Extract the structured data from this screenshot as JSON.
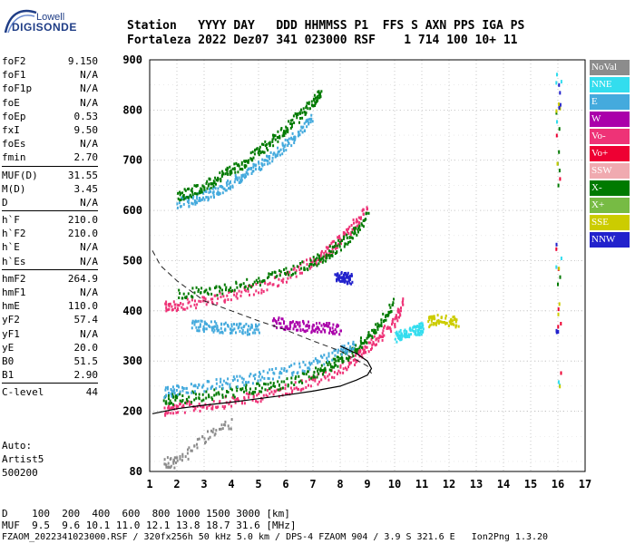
{
  "logo": {
    "line1": "Lowell",
    "line2": "DIGISONDE"
  },
  "header": {
    "line1": "Station   YYYY DAY   DDD HHMMSS P1  FFS S AXN PPS IGA PS",
    "line2": "Fortaleza 2022 Dez07 341 023000 RSF    1 714 100 10+ 11"
  },
  "params_groups": [
    [
      {
        "k": "foF2",
        "v": "9.150"
      },
      {
        "k": "foF1",
        "v": "N/A"
      },
      {
        "k": "foF1p",
        "v": "N/A"
      },
      {
        "k": "foE",
        "v": "N/A"
      },
      {
        "k": "foEp",
        "v": "0.53"
      },
      {
        "k": "fxI",
        "v": "9.50"
      },
      {
        "k": "foEs",
        "v": "N/A"
      },
      {
        "k": "fmin",
        "v": "2.70"
      }
    ],
    [
      {
        "k": "MUF(D)",
        "v": "31.55"
      },
      {
        "k": "M(D)",
        "v": "3.45"
      },
      {
        "k": "D",
        "v": "N/A"
      }
    ],
    [
      {
        "k": "h`F",
        "v": "210.0"
      },
      {
        "k": "h`F2",
        "v": "210.0"
      },
      {
        "k": "h`E",
        "v": "N/A"
      },
      {
        "k": "h`Es",
        "v": "N/A"
      }
    ],
    [
      {
        "k": "hmF2",
        "v": "264.9"
      },
      {
        "k": "hmF1",
        "v": "N/A"
      },
      {
        "k": "hmE",
        "v": "110.0"
      },
      {
        "k": "yF2",
        "v": "57.4"
      },
      {
        "k": "yF1",
        "v": "N/A"
      },
      {
        "k": "yE",
        "v": "20.0"
      },
      {
        "k": "B0",
        "v": "51.5"
      },
      {
        "k": "B1",
        "v": "2.90"
      }
    ],
    [
      {
        "k": "C-level",
        "v": "44"
      }
    ]
  ],
  "auto_block": [
    "Auto:",
    "Artist5",
    "500200"
  ],
  "bottom": {
    "d_line": "D    100  200  400  600  800 1000 1500 3000 [km]",
    "muf_line": "MUF  9.5  9.6 10.1 11.0 12.1 13.8 18.7 31.6 [MHz]",
    "file_line": "FZAOM_2022341023000.RSF / 320fx256h 50 kHz 5.0 km / DPS-4 FZAOM 904 / 3.9 S 321.6 E   Ion2Png 1.3.20"
  },
  "legend": [
    {
      "label": "NoVal",
      "color": "#8c8c8c"
    },
    {
      "label": "NNE",
      "color": "#33ddee"
    },
    {
      "label": "E",
      "color": "#44aadd"
    },
    {
      "label": "W",
      "color": "#aa00aa"
    },
    {
      "label": "Vo-",
      "color": "#ee3377"
    },
    {
      "label": "Vo+",
      "color": "#ee0033"
    },
    {
      "label": "SSW",
      "color": "#f0aab0"
    },
    {
      "label": "X-",
      "color": "#007a00"
    },
    {
      "label": "X+",
      "color": "#77bb44"
    },
    {
      "label": "SSE",
      "color": "#cccc00"
    },
    {
      "label": "NNW",
      "color": "#2222cc"
    }
  ],
  "chart_data": {
    "type": "scatter",
    "title": "",
    "xlabel": "",
    "ylabel": "",
    "xlim": [
      1,
      17
    ],
    "ylim": [
      80,
      900
    ],
    "x_ticks": [
      1,
      2,
      3,
      4,
      5,
      6,
      7,
      8,
      9,
      10,
      11,
      12,
      13,
      14,
      15,
      16,
      17
    ],
    "y_ticks": [
      80,
      200,
      300,
      400,
      500,
      600,
      700,
      800,
      900
    ],
    "grid": true,
    "grid_style": "dotted",
    "traces": [
      {
        "name": "F2 o-mode",
        "color": "#ee3377",
        "x": [
          1.5,
          2.0,
          3.0,
          4.0,
          5.0,
          6.0,
          7.0,
          8.0,
          8.6,
          9.0,
          9.5,
          10.0,
          10.3
        ],
        "y": [
          205,
          208,
          214,
          222,
          232,
          246,
          262,
          285,
          310,
          330,
          355,
          380,
          420
        ]
      },
      {
        "name": "F2 x-mode",
        "color": "#007a00",
        "x": [
          1.5,
          2.0,
          3.0,
          4.0,
          5.0,
          6.0,
          7.0,
          7.5,
          8.0,
          8.5,
          9.0,
          9.5,
          10.0
        ],
        "y": [
          225,
          228,
          234,
          240,
          248,
          258,
          275,
          290,
          305,
          325,
          350,
          380,
          420
        ]
      },
      {
        "name": "Oblique E",
        "color": "#44aadd",
        "x": [
          1.5,
          2.0,
          3.0,
          4.0,
          5.0,
          6.0,
          7.0,
          8.0,
          8.5
        ],
        "y": [
          240,
          244,
          252,
          260,
          270,
          282,
          298,
          320,
          335
        ]
      },
      {
        "name": "2F",
        "color": "#ee3377",
        "x": [
          1.5,
          2.0,
          3.0,
          4.0,
          5.0,
          6.0,
          7.0,
          7.5,
          8.0,
          8.5,
          9.0
        ],
        "y": [
          410,
          412,
          420,
          432,
          448,
          470,
          500,
          520,
          545,
          575,
          610
        ]
      },
      {
        "name": "2F x",
        "color": "#007a00",
        "x": [
          2.0,
          3.0,
          4.0,
          5.0,
          6.0,
          7.0,
          7.5,
          8.0,
          8.5,
          9.0
        ],
        "y": [
          435,
          440,
          450,
          462,
          478,
          500,
          515,
          535,
          560,
          590
        ]
      },
      {
        "name": "3F",
        "color": "#44aadd",
        "x": [
          2.0,
          2.5,
          3.0,
          3.5,
          4.0,
          4.5,
          5.0,
          5.5,
          6.0,
          6.5,
          7.0
        ],
        "y": [
          615,
          622,
          632,
          644,
          658,
          674,
          692,
          712,
          735,
          760,
          790
        ]
      },
      {
        "name": "3F x",
        "color": "#007a00",
        "x": [
          2.0,
          2.5,
          3.0,
          3.5,
          4.0,
          4.5,
          5.0,
          5.5,
          6.0,
          6.5,
          7.0,
          7.3
        ],
        "y": [
          630,
          640,
          652,
          666,
          682,
          700,
          720,
          742,
          766,
          792,
          820,
          840
        ]
      },
      {
        "name": "W scatter",
        "color": "#aa00aa",
        "x": [
          5.5,
          6.0,
          6.5,
          7.0,
          7.5,
          8.0
        ],
        "y": [
          380,
          375,
          372,
          370,
          368,
          366
        ]
      },
      {
        "name": "E scatter",
        "color": "#44aadd",
        "x": [
          2.5,
          3.0,
          3.5,
          4.0,
          4.5,
          5.0
        ],
        "y": [
          375,
          372,
          370,
          368,
          366,
          365
        ]
      },
      {
        "name": "NNW cluster",
        "color": "#2222cc",
        "x": [
          7.8,
          8.0,
          8.2,
          8.4
        ],
        "y": [
          470,
          472,
          468,
          465
        ]
      },
      {
        "name": "NNE spread",
        "color": "#33ddee",
        "x": [
          10.0,
          10.3,
          10.6,
          10.9,
          11.0
        ],
        "y": [
          350,
          355,
          362,
          365,
          368
        ]
      },
      {
        "name": "SSE",
        "color": "#cccc00",
        "x": [
          11.2,
          11.5,
          12.0,
          12.3
        ],
        "y": [
          380,
          385,
          382,
          380
        ]
      },
      {
        "name": "NoVal fringe",
        "color": "#8c8c8c",
        "x": [
          1.5,
          2.0,
          3.0,
          4.0
        ],
        "y": [
          100,
          100,
          150,
          180
        ]
      }
    ],
    "edge_cluster": {
      "x": 16.0,
      "y_min": 250,
      "y_max": 890
    },
    "profile_dashed": {
      "x": [
        1.1,
        1.4,
        2.0,
        3.0,
        4.0,
        5.0,
        6.0,
        7.0,
        8.0,
        8.5,
        9.0,
        9.15
      ],
      "y": [
        520,
        490,
        460,
        420,
        400,
        380,
        362,
        340,
        320,
        305,
        290,
        275
      ]
    },
    "profile_solid": {
      "x": [
        1.1,
        2.0,
        3.0,
        4.0,
        5.0,
        6.0,
        7.0,
        8.0,
        8.6,
        9.0,
        9.15,
        9.0,
        8.6,
        8.0
      ],
      "y": [
        195,
        205,
        212,
        218,
        225,
        232,
        240,
        250,
        262,
        272,
        285,
        300,
        315,
        330
      ]
    }
  }
}
